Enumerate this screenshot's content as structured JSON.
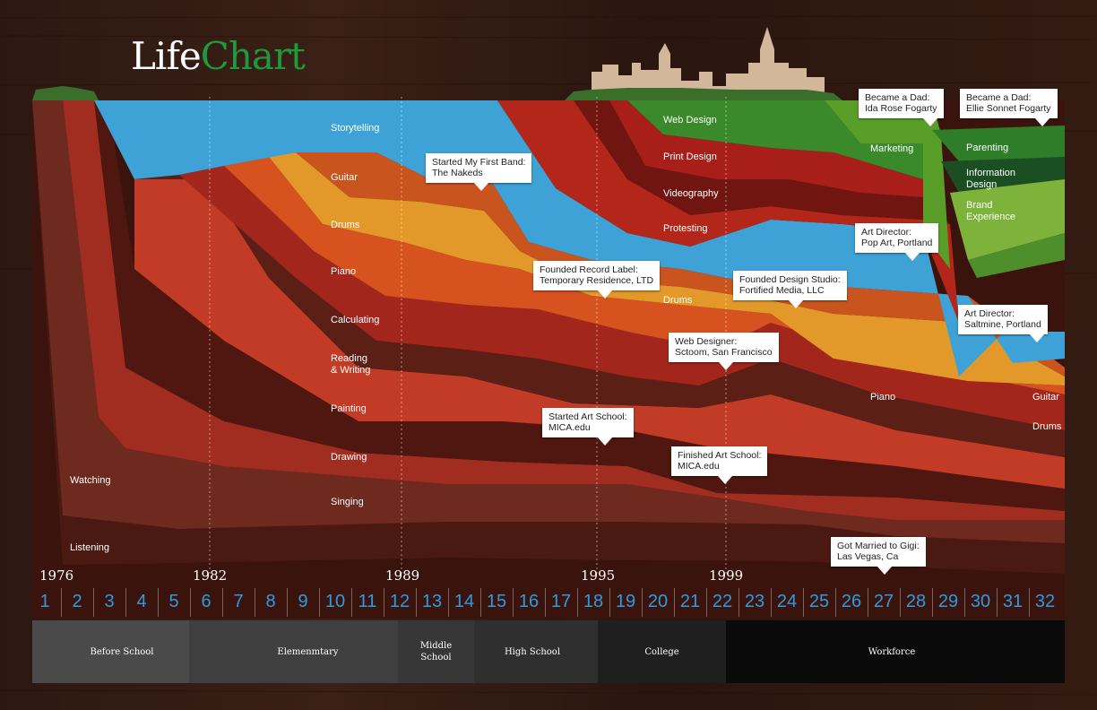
{
  "title": {
    "part1": "Life",
    "part2": "Chart"
  },
  "colors": {
    "storytelling": "#3fa3d6",
    "guitar": "#cf5a20",
    "drums": "#e09a25",
    "piano": "#d64f1f",
    "calculating": "#a8281e",
    "reading": "#5a1e14",
    "painting": "#c33a26",
    "drawing": "#4a1711",
    "singing": "#9a2a20",
    "watching": "#6a2a20",
    "listening": "#3e1510",
    "web_design": "#3a8a2a",
    "print_design": "#a41d18",
    "videography": "#6e1410",
    "protesting": "#b02418",
    "marketing": "#5a9e2a",
    "parenting": "#2d7d28",
    "information_design": "#1a4e22",
    "brand_experience": "#7cb23a"
  },
  "chart_data": {
    "type": "area",
    "x_ages": [
      1,
      2,
      3,
      4,
      5,
      6,
      7,
      8,
      9,
      10,
      11,
      12,
      13,
      14,
      15,
      16,
      17,
      18,
      19,
      20,
      21,
      22,
      23,
      24,
      25,
      26,
      27,
      28,
      29,
      30,
      31,
      32
    ],
    "year_markers": [
      {
        "age": 1,
        "year": "1976"
      },
      {
        "age": 6,
        "year": "1982"
      },
      {
        "age": 12,
        "year": "1989"
      },
      {
        "age": 18,
        "year": "1995"
      },
      {
        "age": 22,
        "year": "1999"
      }
    ],
    "layers": [
      {
        "name": "Listening",
        "label": "Listening"
      },
      {
        "name": "Watching",
        "label": "Watching"
      },
      {
        "name": "Singing",
        "label": "Singing"
      },
      {
        "name": "Drawing",
        "label": "Drawing"
      },
      {
        "name": "Painting",
        "label": "Painting"
      },
      {
        "name": "Reading & Writing",
        "label": "Reading\n& Writing"
      },
      {
        "name": "Calculating",
        "label": "Calculating"
      },
      {
        "name": "Piano",
        "label": "Piano"
      },
      {
        "name": "Drums",
        "label": "Drums"
      },
      {
        "name": "Guitar",
        "label": "Guitar"
      },
      {
        "name": "Storytelling",
        "label": "Storytelling"
      },
      {
        "name": "Protesting",
        "label": "Protesting"
      },
      {
        "name": "Videography",
        "label": "Videography"
      },
      {
        "name": "Print Design",
        "label": "Print Design"
      },
      {
        "name": "Web Design",
        "label": "Web Design"
      },
      {
        "name": "Marketing",
        "label": "Marketing"
      },
      {
        "name": "Parenting",
        "label": "Parenting"
      },
      {
        "name": "Information Design",
        "label": "Information\nDesign"
      },
      {
        "name": "Brand Experience",
        "label": "Brand\nExperience"
      }
    ],
    "life_stages": [
      {
        "label": "Before School"
      },
      {
        "label": "Elemenmtary"
      },
      {
        "label": "Middle\nSchool"
      },
      {
        "label": "High School"
      },
      {
        "label": "College"
      },
      {
        "label": "Workforce"
      }
    ],
    "events": [
      {
        "text": "Started My First Band:\nThe Nakeds"
      },
      {
        "text": "Founded Record Label:\nTemporary Residence, LTD"
      },
      {
        "text": "Started Art School:\nMICA.edu"
      },
      {
        "text": "Web Designer:\nSctoom, San Francisco"
      },
      {
        "text": "Finished Art School:\nMICA.edu"
      },
      {
        "text": "Founded Design Studio:\nFortified Media, LLC"
      },
      {
        "text": "Became a Dad:\nIda Rose Fogarty"
      },
      {
        "text": "Became a Dad:\nEllie Sonnet Fogarty"
      },
      {
        "text": "Art Director:\nPop Art, Portland"
      },
      {
        "text": "Art Director:\nSaltmine, Portland"
      },
      {
        "text": "Got Married to Gigi:\nLas Vegas, Ca"
      }
    ],
    "late_labels": {
      "drums": "Drums",
      "piano": "Piano",
      "guitar": "Guitar",
      "drums2": "Drums"
    }
  }
}
